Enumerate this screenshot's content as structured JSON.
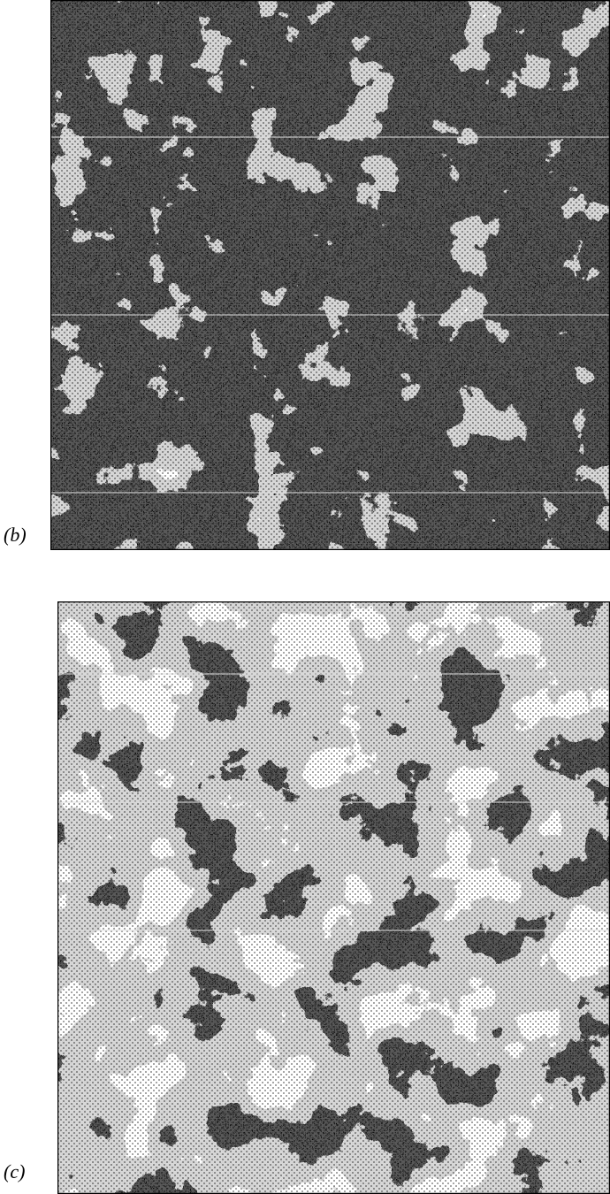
{
  "panels": [
    {
      "label": "(b)"
    },
    {
      "label": "(c)"
    }
  ]
}
